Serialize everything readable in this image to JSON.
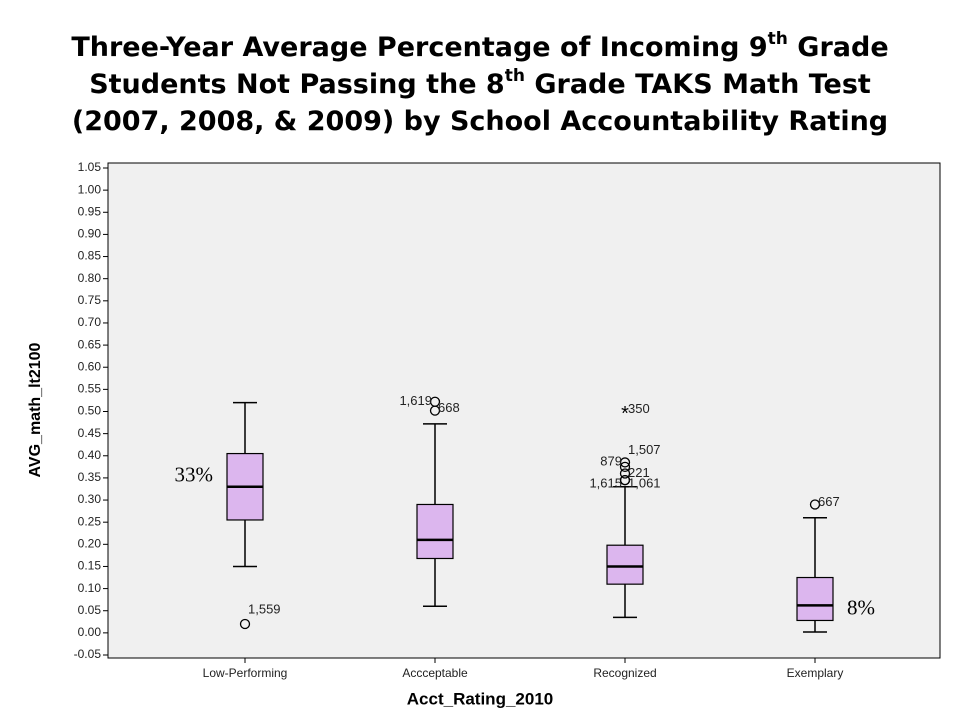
{
  "chart_data": {
    "type": "boxplot",
    "title": [
      [
        {
          "text": "Three-Year Average Percentage of Incoming 9",
          "sup": false
        },
        {
          "text": "th",
          "sup": true
        },
        {
          "text": " Grade",
          "sup": false
        }
      ],
      [
        {
          "text": "Students Not Passing the 8",
          "sup": false
        },
        {
          "text": "th",
          "sup": true
        },
        {
          "text": " Grade TAKS Math Test",
          "sup": false
        }
      ],
      [
        {
          "text": "(2007, 2008, & 2009) by School Accountability Rating",
          "sup": false
        }
      ]
    ],
    "x_label": "Acct_Rating_2010",
    "y_label": "AVG_math_lt2100",
    "categories": [
      "Low-Performing",
      "Accceptable",
      "Recognized",
      "Exemplary"
    ],
    "color": "#dcb6ee",
    "background": "#f0f0f0",
    "boxes": [
      {
        "low": 0.15,
        "q1": 0.255,
        "median": 0.33,
        "q3": 0.405,
        "high": 0.52,
        "outliers": [
          {
            "value": 0.02,
            "label": "1,559",
            "marker": "circle"
          }
        ]
      },
      {
        "low": 0.06,
        "q1": 0.168,
        "median": 0.21,
        "q3": 0.29,
        "high": 0.472,
        "outliers": [
          {
            "value": 0.522,
            "label": "1,619",
            "marker": "circle"
          },
          {
            "value": 0.502,
            "label": "668",
            "marker": "circle"
          }
        ]
      },
      {
        "low": 0.035,
        "q1": 0.11,
        "median": 0.15,
        "q3": 0.198,
        "high": 0.33,
        "outliers": [
          {
            "value": 0.5,
            "label": "350",
            "marker": "star"
          },
          {
            "value": 0.385,
            "label": "1,507",
            "marker": "circle"
          },
          {
            "value": 0.375,
            "label": "879",
            "marker": "circle"
          },
          {
            "value": 0.36,
            "label": "221",
            "marker": "circle"
          },
          {
            "value": 0.345,
            "label": "1,615",
            "marker": "circle"
          },
          {
            "value": 0.345,
            "label": "1,061",
            "marker": "circle"
          }
        ]
      },
      {
        "low": 0.002,
        "q1": 0.028,
        "median": 0.062,
        "q3": 0.125,
        "high": 0.26,
        "outliers": [
          {
            "value": 0.29,
            "label": "667",
            "marker": "circle"
          }
        ]
      }
    ],
    "annotations": [
      {
        "text": "33%",
        "value": 33,
        "category": 0,
        "side": "left"
      },
      {
        "text": "8%",
        "value": 8,
        "category": 3,
        "side": "right"
      }
    ],
    "ylim": [
      -0.05,
      1.05
    ],
    "yticks": [
      -0.05,
      {
        "value": 0,
        "label": "0.00"
      },
      0.05,
      {
        "value": 0.1,
        "label": "0.10"
      },
      0.15,
      {
        "value": 0.2,
        "label": "0.20"
      },
      0.25,
      {
        "value": 0.3,
        "label": "0.30"
      },
      0.35,
      {
        "value": 0.4,
        "label": "0.40"
      },
      0.45,
      {
        "value": 0.5,
        "label": "0.50"
      },
      0.55,
      {
        "value": 0.6,
        "label": "0.60"
      },
      0.65,
      {
        "value": 0.7,
        "label": "0.70"
      },
      0.75,
      {
        "value": 0.8,
        "label": "0.80"
      },
      0.85,
      {
        "value": 0.9,
        "label": "0.90"
      },
      0.95,
      {
        "value": 1,
        "label": "1.00"
      },
      1.05
    ]
  }
}
